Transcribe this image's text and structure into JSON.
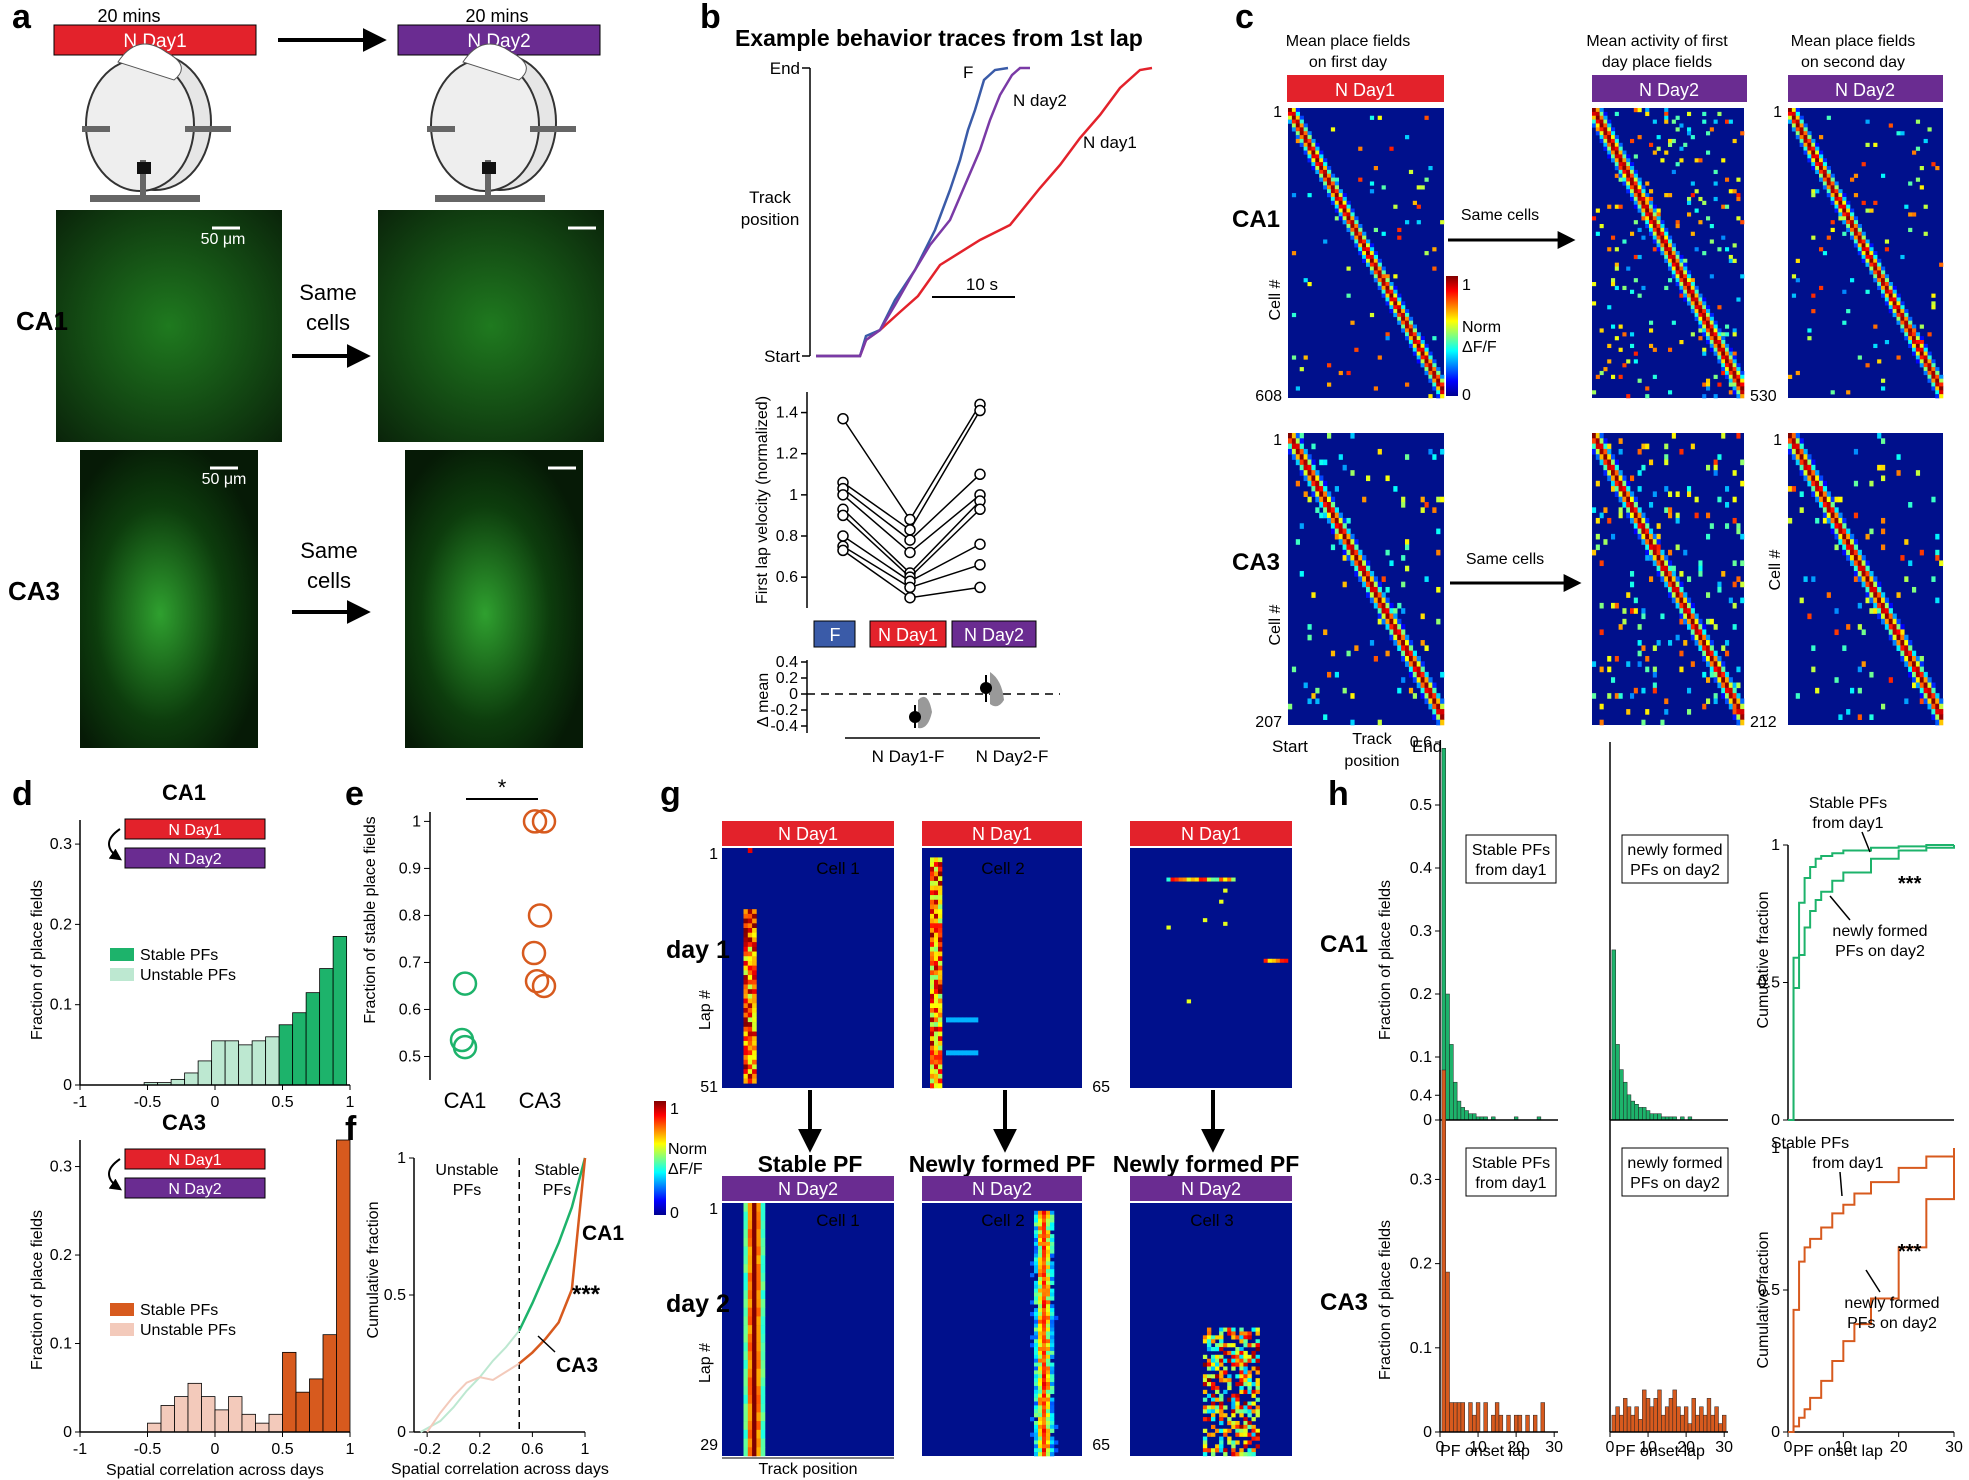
{
  "panel_labels": [
    "a",
    "b",
    "c",
    "d",
    "e",
    "f",
    "g",
    "h"
  ],
  "colors": {
    "nday1": "#e3222b",
    "nday2": "#6a2c91",
    "fam": "#3a5ba8",
    "green": "#1db36b",
    "green_light": "#bde8d1",
    "orange": "#d75a1e",
    "orange_light": "#f3cabb",
    "heat_bg": "#00108c"
  },
  "a": {
    "duration_left": "20 mins",
    "duration_right": "20 mins",
    "nday1": "N Day1",
    "nday2": "N Day2",
    "scale_top": "50 μm",
    "scale_bottom": "50 μm",
    "same_cells_1": "Same",
    "same_cells_2": "cells",
    "ca1": "CA1",
    "ca3": "CA3"
  },
  "b": {
    "title": "Example behavior traces from 1st lap",
    "y_end": "End",
    "y_start": "Start",
    "ylabel_1": "Track",
    "ylabel_2": "position",
    "scalebar": "10 s",
    "trace_labels": [
      "F",
      "N day2",
      "N day1"
    ],
    "velocity_ylabel": "First lap velocity (normalized)",
    "velocity_ticks": [
      "1.4",
      "1.2",
      "1",
      "0.8",
      "0.6"
    ],
    "groups": [
      "F",
      "N Day1",
      "N Day2"
    ],
    "delta_ylabel": "Δ mean",
    "delta_ticks": [
      "0.4",
      "0.2",
      "0",
      "-0.2",
      "-0.4"
    ],
    "delta_groups": [
      "N Day1-F",
      "N Day2-F"
    ]
  },
  "c": {
    "col1_title_1": "Mean place fields",
    "col1_title_2": "on first day",
    "col2_title_1": "Mean activity of first",
    "col2_title_2": "day place fields",
    "col3_title_1": "Mean place fields",
    "col3_title_2": "on second day",
    "nday1": "N Day1",
    "nday2": "N Day2",
    "ca1": "CA1",
    "ca3": "CA3",
    "cell": "Cell #",
    "same_cells": "Same cells",
    "ca1_first": "1",
    "ca1_n1": "608",
    "ca1_n2": "530",
    "ca3_first": "1",
    "ca3_n1": "207",
    "ca3_n2": "212",
    "colorbar_max": "1",
    "colorbar_min": "0",
    "colorbar_label_1": "Norm",
    "colorbar_label_2": "ΔF/F",
    "x_start": "Start",
    "x_end": "End",
    "x_label_1": "Track",
    "x_label_2": "position"
  },
  "d": {
    "ca1": "CA1",
    "ca3": "CA3",
    "nday1": "N Day1",
    "nday2": "N Day2",
    "ylabel": "Fraction of place fields",
    "xlabel": "Spatial correlation across days",
    "yticks": [
      "0.3",
      "0.2",
      "0.1",
      "0"
    ],
    "xticks": [
      "-1",
      "-0.5",
      "0",
      "0.5",
      "1"
    ],
    "legend_stable": "Stable PFs",
    "legend_unstable": "Unstable PFs"
  },
  "e": {
    "ylabel": "Fraction of stable place fields",
    "yticks": [
      "1",
      "0.9",
      "0.8",
      "0.7",
      "0.6",
      "0.5"
    ],
    "groups": [
      "CA1",
      "CA3"
    ],
    "sig": "*"
  },
  "f": {
    "ylabel": "Cumulative fraction",
    "xlabel": "Spatial correlation across days",
    "yticks": [
      "1",
      "0.5",
      "0"
    ],
    "xticks": [
      "-0.2",
      "0.2",
      "0.6",
      "1"
    ],
    "unstable_1": "Unstable",
    "unstable_2": "PFs",
    "stable_1": "Stable",
    "stable_2": "PFs",
    "ca1": "CA1",
    "ca3": "CA3",
    "sig": "***"
  },
  "g": {
    "nday1": "N Day1",
    "nday2": "N Day2",
    "cell1": "Cell 1",
    "cell2": "Cell 2",
    "cell3": "Cell 3",
    "day1": "day 1",
    "day2": "day 2",
    "lap": "Lap #",
    "stable_pf": "Stable PF",
    "newly_pf": "Newly formed PF",
    "first": "1",
    "n_51": "51",
    "n_65": "65",
    "n_29": "29",
    "n_65b": "65",
    "x_label": "Track position",
    "colorbar_max": "1",
    "colorbar_min": "0",
    "colorbar_label_1": "Norm",
    "colorbar_label_2": "ΔF/F"
  },
  "h": {
    "ca1": "CA1",
    "ca3": "CA3",
    "ylabel": "Fraction of place fields",
    "ylabel_cum": "Cumulative fraction",
    "xlabel": "PF onset lap",
    "ca1_yticks": [
      "0.6",
      "0.5",
      "0.4",
      "0.3",
      "0.2",
      "0.1",
      "0"
    ],
    "ca3_yticks": [
      "0.4",
      "0.3",
      "0.2",
      "0.1",
      "0"
    ],
    "xticks": [
      "0",
      "10",
      "20",
      "30"
    ],
    "cum_yticks": [
      "1",
      "0.5",
      "0"
    ],
    "stable_box_1": "Stable PFs",
    "stable_box_2": "from day1",
    "new_box_1": "newly formed",
    "new_box_2": "PFs on day2",
    "sig": "***"
  },
  "chart_data": [
    {
      "panel": "b-velocity",
      "type": "scatter",
      "categories": [
        "F",
        "N Day1",
        "N Day2"
      ],
      "series": [
        {
          "values": [
            1.37,
            0.88,
            1.44
          ]
        },
        {
          "values": [
            1.06,
            0.83,
            1.41
          ]
        },
        {
          "values": [
            1.03,
            0.78,
            1.1
          ]
        },
        {
          "values": [
            1.0,
            0.72,
            1.0
          ]
        },
        {
          "values": [
            0.93,
            0.62,
            0.97
          ]
        },
        {
          "values": [
            0.9,
            0.6,
            0.93
          ]
        },
        {
          "values": [
            0.8,
            0.58,
            0.76
          ]
        },
        {
          "values": [
            0.75,
            0.55,
            0.66
          ]
        },
        {
          "values": [
            0.73,
            0.5,
            0.55
          ]
        }
      ],
      "ylim": [
        0.45,
        1.5
      ]
    },
    {
      "panel": "d-CA1",
      "type": "bar",
      "x": [
        -0.475,
        -0.375,
        -0.275,
        -0.175,
        -0.075,
        0.025,
        0.125,
        0.225,
        0.325,
        0.425,
        0.525,
        0.625,
        0.725,
        0.825,
        0.925
      ],
      "values": [
        0.003,
        0.003,
        0.007,
        0.015,
        0.03,
        0.055,
        0.055,
        0.05,
        0.055,
        0.06,
        0.075,
        0.09,
        0.115,
        0.145,
        0.185
      ],
      "xlim": [
        -1,
        1
      ],
      "ylim": [
        0,
        0.33
      ]
    },
    {
      "panel": "d-CA3",
      "type": "bar",
      "x": [
        -0.45,
        -0.35,
        -0.25,
        -0.15,
        -0.05,
        0.05,
        0.15,
        0.25,
        0.35,
        0.45,
        0.55,
        0.65,
        0.75,
        0.85,
        0.95
      ],
      "values": [
        0.01,
        0.03,
        0.04,
        0.055,
        0.04,
        0.025,
        0.04,
        0.02,
        0.01,
        0.02,
        0.09,
        0.045,
        0.06,
        0.11,
        0.33
      ],
      "xlim": [
        -1,
        1
      ],
      "ylim": [
        0,
        0.33
      ]
    },
    {
      "panel": "e",
      "type": "scatter",
      "series": [
        {
          "name": "CA1",
          "values": [
            0.655,
            0.535,
            0.52
          ]
        },
        {
          "name": "CA3",
          "values": [
            1.0,
            1.0,
            0.8,
            0.72,
            0.66,
            0.65
          ]
        }
      ],
      "ylim": [
        0.45,
        1.02
      ]
    },
    {
      "panel": "f",
      "type": "line",
      "series": [
        {
          "name": "CA1",
          "x": [
            -0.25,
            -0.1,
            0.0,
            0.1,
            0.2,
            0.3,
            0.4,
            0.5,
            0.6,
            0.7,
            0.8,
            0.9,
            1.0
          ],
          "values": [
            0.0,
            0.04,
            0.09,
            0.15,
            0.2,
            0.26,
            0.31,
            0.37,
            0.47,
            0.58,
            0.69,
            0.82,
            1.0
          ]
        },
        {
          "name": "CA3",
          "x": [
            -0.2,
            -0.1,
            0.0,
            0.1,
            0.2,
            0.3,
            0.4,
            0.5,
            0.6,
            0.7,
            0.8,
            0.9,
            1.0
          ],
          "values": [
            0.0,
            0.07,
            0.13,
            0.18,
            0.2,
            0.19,
            0.22,
            0.25,
            0.29,
            0.34,
            0.4,
            0.52,
            1.0
          ]
        }
      ],
      "xlim": [
        -0.3,
        1
      ],
      "ylim": [
        0,
        1
      ]
    },
    {
      "panel": "h-CA1-stable",
      "type": "bar",
      "x": [
        1,
        2,
        3,
        4,
        5,
        6,
        7,
        8,
        9,
        10,
        11,
        12,
        13,
        14,
        15,
        16,
        17,
        18,
        19,
        20,
        21,
        22,
        23,
        24,
        25,
        26,
        27,
        28,
        29,
        30
      ],
      "values": [
        0.59,
        0.2,
        0.12,
        0.06,
        0.03,
        0.02,
        0.015,
        0.01,
        0.01,
        0.005,
        0.005,
        0.005,
        0,
        0.005,
        0,
        0,
        0,
        0,
        0,
        0.005,
        0,
        0,
        0,
        0,
        0,
        0.005,
        0,
        0,
        0,
        0
      ],
      "ylim": [
        0,
        0.6
      ]
    },
    {
      "panel": "h-CA1-new",
      "type": "bar",
      "x": [
        1,
        2,
        3,
        4,
        5,
        6,
        7,
        8,
        9,
        10,
        11,
        12,
        13,
        14,
        15,
        16,
        17,
        18,
        19,
        20,
        21,
        22,
        23,
        24,
        25,
        26,
        27,
        28,
        29,
        30
      ],
      "values": [
        0.27,
        0.12,
        0.08,
        0.06,
        0.04,
        0.03,
        0.025,
        0.02,
        0.02,
        0.015,
        0.01,
        0.01,
        0.01,
        0.005,
        0.005,
        0.005,
        0.005,
        0,
        0.005,
        0,
        0.005,
        0,
        0,
        0,
        0,
        0,
        0,
        0,
        0,
        0
      ],
      "ylim": [
        0,
        0.6
      ]
    },
    {
      "panel": "h-CA3-stable",
      "type": "bar",
      "x": [
        1,
        2,
        3,
        4,
        5,
        6,
        7,
        8,
        9,
        10,
        11,
        12,
        13,
        14,
        15,
        16,
        17,
        18,
        19,
        20,
        21,
        22,
        23,
        24,
        25,
        26,
        27,
        28,
        29,
        30
      ],
      "values": [
        0.43,
        0.19,
        0.035,
        0.035,
        0.035,
        0.035,
        0,
        0.035,
        0.02,
        0.035,
        0,
        0.035,
        0,
        0.02,
        0.035,
        0.02,
        0,
        0.02,
        0,
        0.02,
        0.02,
        0,
        0.02,
        0,
        0.02,
        0,
        0.035,
        0,
        0,
        0
      ],
      "ylim": [
        0,
        0.43
      ]
    },
    {
      "panel": "h-CA3-new",
      "type": "bar",
      "x": [
        1,
        2,
        3,
        4,
        5,
        6,
        7,
        8,
        9,
        10,
        11,
        12,
        13,
        14,
        15,
        16,
        17,
        18,
        19,
        20,
        21,
        22,
        23,
        24,
        25,
        26,
        27,
        28,
        29,
        30
      ],
      "values": [
        0.02,
        0.03,
        0.02,
        0.04,
        0.03,
        0.02,
        0.03,
        0.015,
        0.05,
        0.04,
        0.03,
        0.04,
        0.05,
        0.02,
        0.03,
        0.04,
        0.05,
        0.03,
        0.02,
        0.03,
        0.01,
        0.04,
        0.02,
        0.03,
        0.02,
        0.04,
        0.02,
        0.03,
        0.01,
        0.02
      ],
      "ylim": [
        0,
        0.43
      ]
    },
    {
      "panel": "h-cumulative-CA1",
      "type": "line",
      "series": [
        {
          "name": "Stable PFs from day1",
          "x": [
            0,
            1,
            2,
            3,
            4,
            5,
            6,
            8,
            10,
            15,
            20,
            25,
            30
          ],
          "values": [
            0,
            0.59,
            0.79,
            0.88,
            0.92,
            0.95,
            0.96,
            0.97,
            0.98,
            0.99,
            0.995,
            1,
            1
          ]
        },
        {
          "name": "newly formed PFs on day2",
          "x": [
            0,
            1,
            2,
            3,
            4,
            5,
            6,
            8,
            10,
            15,
            20,
            25,
            30
          ],
          "values": [
            0,
            0.48,
            0.6,
            0.7,
            0.76,
            0.8,
            0.83,
            0.87,
            0.9,
            0.95,
            0.98,
            0.99,
            1
          ]
        }
      ],
      "xlim": [
        0,
        30
      ],
      "ylim": [
        0,
        1
      ]
    },
    {
      "panel": "h-cumulative-CA3",
      "type": "line",
      "series": [
        {
          "name": "Stable PFs from day1",
          "x": [
            0,
            1,
            2,
            3,
            4,
            6,
            8,
            10,
            12,
            15,
            20,
            25,
            30
          ],
          "values": [
            0,
            0.43,
            0.6,
            0.65,
            0.68,
            0.72,
            0.77,
            0.8,
            0.84,
            0.88,
            0.93,
            0.97,
            1
          ]
        },
        {
          "name": "newly formed PFs on day2",
          "x": [
            0,
            1,
            2,
            3,
            4,
            6,
            8,
            10,
            12,
            15,
            20,
            25,
            30
          ],
          "values": [
            0,
            0.02,
            0.05,
            0.08,
            0.12,
            0.18,
            0.25,
            0.32,
            0.38,
            0.47,
            0.65,
            0.82,
            1
          ]
        }
      ],
      "xlim": [
        0,
        30
      ],
      "ylim": [
        0,
        1
      ]
    }
  ]
}
